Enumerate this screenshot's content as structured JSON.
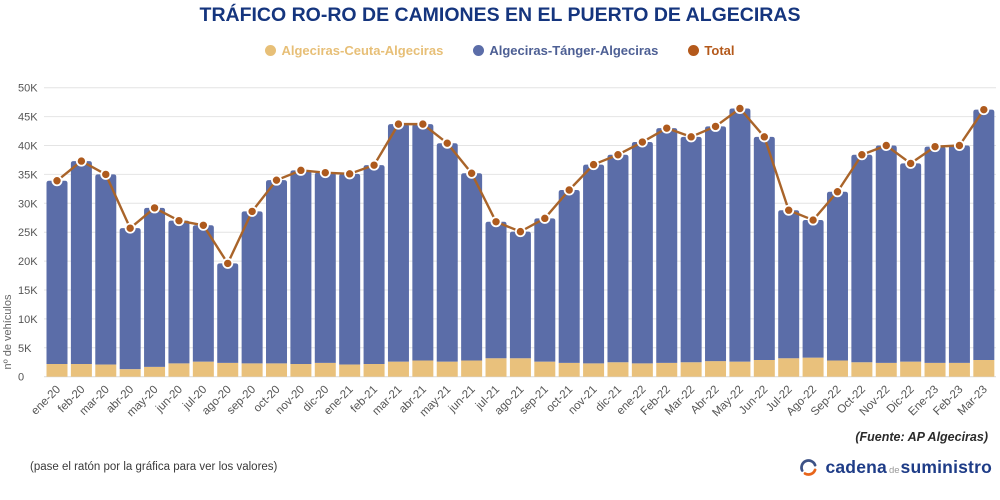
{
  "title": "TRÁFICO RO-RO DE CAMIONES EN EL PUERTO DE ALGECIRAS",
  "legend": [
    {
      "label": "Algeciras-Ceuta-Algeciras",
      "color": "#e7bf77",
      "text_color": "#e7bf77"
    },
    {
      "label": "Algeciras-Tánger-Algeciras",
      "color": "#5b6da8",
      "text_color": "#4d5f94"
    },
    {
      "label": "Total",
      "color": "#b4591b",
      "text_color": "#b4591b"
    }
  ],
  "chart_data": {
    "type": "bar",
    "subtype": "stacked-bars-with-total-line",
    "title": "TRÁFICO RO-RO DE CAMIONES EN EL PUERTO DE ALGECIRAS",
    "xlabel": "",
    "ylabel": "nº de vehículos",
    "ylim": [
      0,
      50000
    ],
    "grid": true,
    "legend_position": "top",
    "y_tick_values": [
      0,
      5000,
      10000,
      15000,
      20000,
      25000,
      30000,
      35000,
      40000,
      45000,
      50000
    ],
    "y_tick_labels": [
      "0",
      "5K",
      "10K",
      "15K",
      "20K",
      "25K",
      "30K",
      "35K",
      "40K",
      "45K",
      "50K"
    ],
    "categories": [
      "ene-20",
      "feb-20",
      "mar-20",
      "abr-20",
      "may-20",
      "jun-20",
      "jul-20",
      "ago-20",
      "sep-20",
      "oct-20",
      "nov-20",
      "dic-20",
      "ene-21",
      "feb-21",
      "mar-21",
      "abr-21",
      "may-21",
      "jun-21",
      "jul-21",
      "ago-21",
      "sep-21",
      "oct-21",
      "nov-21",
      "dic-21",
      "ene-22",
      "Feb-22",
      "Mar-22",
      "Abr-22",
      "May-22",
      "Jun-22",
      "Jul-22",
      "Ago-22",
      "Sep-22",
      "Oct-22",
      "Nov-22",
      "Dic-22",
      "Ene-23",
      "Feb-23",
      "Mar-23"
    ],
    "series": [
      {
        "name": "Algeciras-Ceuta-Algeciras",
        "type": "bar",
        "color": "#e9c17c",
        "values": [
          2200,
          2200,
          2100,
          1300,
          1700,
          2300,
          2600,
          2400,
          2300,
          2300,
          2200,
          2400,
          2100,
          2200,
          2600,
          2800,
          2600,
          2800,
          3200,
          3200,
          2600,
          2400,
          2300,
          2500,
          2300,
          2400,
          2500,
          2700,
          2600,
          2900,
          3200,
          3300,
          2800,
          2500,
          2400,
          2600,
          2400,
          2400,
          2900
        ]
      },
      {
        "name": "Algeciras-Tánger-Algeciras",
        "type": "bar",
        "color": "#5b6da8",
        "values": [
          31700,
          35100,
          32900,
          24400,
          27500,
          24700,
          23600,
          17200,
          26300,
          31700,
          33500,
          32900,
          33000,
          34400,
          41100,
          40900,
          37800,
          32400,
          23600,
          21900,
          24800,
          29900,
          34400,
          35900,
          38300,
          40600,
          39000,
          40600,
          43800,
          38600,
          25600,
          23800,
          29200,
          35900,
          37600,
          34300,
          37400,
          37600,
          43300
        ]
      },
      {
        "name": "Total",
        "type": "line",
        "color": "#ae5a1d",
        "line_color": "#a9642a",
        "values": [
          33900,
          37300,
          35000,
          25700,
          29200,
          27000,
          26200,
          19600,
          28600,
          34000,
          35700,
          35300,
          35100,
          36600,
          43700,
          43700,
          40400,
          35200,
          26800,
          25100,
          27400,
          32300,
          36700,
          38400,
          40600,
          43000,
          41500,
          43300,
          46400,
          41500,
          28800,
          27100,
          32000,
          38400,
          40000,
          36900,
          39800,
          40000,
          46200
        ]
      }
    ]
  },
  "footer": {
    "hint": "(pase el ratón por la gráfica para ver los valores)",
    "source": "(Fuente: AP Algeciras)"
  },
  "logo": {
    "word1": "cadena",
    "word2": "de",
    "word3": "suministro"
  },
  "colors": {
    "title": "#15357e",
    "grid": "#e4e4e4",
    "tick_text": "#555555",
    "axis_label": "#666666",
    "dot_stroke": "#ffffff"
  }
}
